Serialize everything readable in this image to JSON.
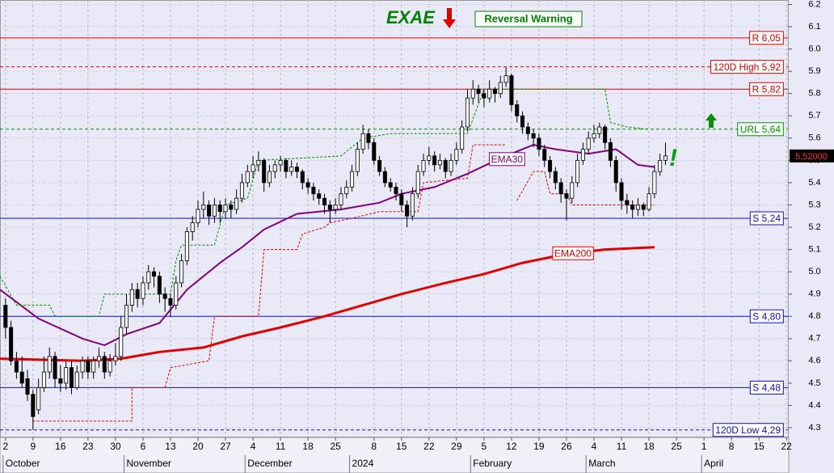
{
  "chart_data": {
    "type": "candlestick",
    "title": "EXAE",
    "signal": "Reversal Warning",
    "annotation": "!",
    "xlim": [
      -1,
      143
    ],
    "ylim": [
      4.26,
      6.22
    ],
    "yticks": [
      4.3,
      4.4,
      4.5,
      4.6,
      4.7,
      4.8,
      4.9,
      {
        "value": 5,
        "label": "5.0"
      },
      5.1,
      5.2,
      5.3,
      5.4,
      5.5,
      5.6,
      5.7,
      5.8,
      5.9,
      {
        "value": 6,
        "label": "6.0"
      },
      6.1,
      6.2
    ],
    "xticks": [
      {
        "value": 0,
        "label": "2"
      },
      {
        "value": 5,
        "label": "9"
      },
      {
        "value": 10,
        "label": "16"
      },
      {
        "value": 15,
        "label": "23"
      },
      {
        "value": 20,
        "label": "30"
      },
      {
        "value": 25,
        "label": "6"
      },
      {
        "value": 30,
        "label": "13"
      },
      {
        "value": 35,
        "label": "20"
      },
      {
        "value": 40,
        "label": "27"
      },
      {
        "value": 45,
        "label": "4"
      },
      {
        "value": 50,
        "label": "11"
      },
      {
        "value": 55,
        "label": "18"
      },
      {
        "value": 60,
        "label": "25"
      },
      {
        "value": 67,
        "label": "8"
      },
      {
        "value": 72,
        "label": "15"
      },
      {
        "value": 77,
        "label": "22"
      },
      {
        "value": 82,
        "label": "29"
      },
      {
        "value": 87,
        "label": "5"
      },
      {
        "value": 92,
        "label": "12"
      },
      {
        "value": 97,
        "label": "19"
      },
      {
        "value": 102,
        "label": "26"
      },
      {
        "value": 107,
        "label": "4"
      },
      {
        "value": 112,
        "label": "11"
      },
      {
        "value": 117,
        "label": "18"
      },
      {
        "value": 122,
        "label": "25"
      },
      {
        "value": 127,
        "label": "1"
      },
      {
        "value": 132,
        "label": "8"
      },
      {
        "value": 137,
        "label": "15"
      },
      {
        "value": 142,
        "label": "22"
      }
    ],
    "months": [
      {
        "value": 0,
        "label": "October"
      },
      {
        "value": 22,
        "label": "November"
      },
      {
        "value": 44,
        "label": "December"
      },
      {
        "value": 63,
        "label": "2024"
      },
      {
        "value": 85,
        "label": "February"
      },
      {
        "value": 106,
        "label": "March"
      },
      {
        "value": 127,
        "label": "April"
      }
    ],
    "candles": [
      [
        4.85,
        4.88,
        4.7,
        4.75
      ],
      [
        4.75,
        4.78,
        4.58,
        4.6
      ],
      [
        4.6,
        4.64,
        4.52,
        4.55
      ],
      [
        4.55,
        4.62,
        4.48,
        4.5
      ],
      [
        4.52,
        4.56,
        4.42,
        4.45
      ],
      [
        4.45,
        4.47,
        4.29,
        4.35
      ],
      [
        4.38,
        4.52,
        4.36,
        4.48
      ],
      [
        4.48,
        4.62,
        4.46,
        4.55
      ],
      [
        4.55,
        4.66,
        4.52,
        4.62
      ],
      [
        4.62,
        4.64,
        4.48,
        4.52
      ],
      [
        4.52,
        4.58,
        4.46,
        4.5
      ],
      [
        4.5,
        4.6,
        4.47,
        4.57
      ],
      [
        4.57,
        4.6,
        4.45,
        4.48
      ],
      [
        4.48,
        4.58,
        4.47,
        4.55
      ],
      [
        4.55,
        4.62,
        4.52,
        4.6
      ],
      [
        4.6,
        4.62,
        4.52,
        4.55
      ],
      [
        4.55,
        4.62,
        4.52,
        4.6
      ],
      [
        4.6,
        4.66,
        4.57,
        4.62
      ],
      [
        4.62,
        4.64,
        4.52,
        4.55
      ],
      [
        4.55,
        4.63,
        4.53,
        4.6
      ],
      [
        4.6,
        4.68,
        4.58,
        4.62
      ],
      [
        4.62,
        4.8,
        4.6,
        4.75
      ],
      [
        4.75,
        4.9,
        4.72,
        4.85
      ],
      [
        4.85,
        4.95,
        4.82,
        4.92
      ],
      [
        4.92,
        4.95,
        4.84,
        4.88
      ],
      [
        4.88,
        4.98,
        4.85,
        4.95
      ],
      [
        4.95,
        5.03,
        4.92,
        5.0
      ],
      [
        5.0,
        5.02,
        4.93,
        4.98
      ],
      [
        4.98,
        5.0,
        4.86,
        4.9
      ],
      [
        4.9,
        4.93,
        4.82,
        4.88
      ],
      [
        4.88,
        4.9,
        4.8,
        4.85
      ],
      [
        4.85,
        4.98,
        4.83,
        4.95
      ],
      [
        4.95,
        5.08,
        4.93,
        5.05
      ],
      [
        5.05,
        5.2,
        5.03,
        5.18
      ],
      [
        5.18,
        5.25,
        5.14,
        5.22
      ],
      [
        5.22,
        5.32,
        5.2,
        5.28
      ],
      [
        5.28,
        5.36,
        5.24,
        5.3
      ],
      [
        5.3,
        5.32,
        5.21,
        5.25
      ],
      [
        5.25,
        5.33,
        5.22,
        5.3
      ],
      [
        5.3,
        5.32,
        5.22,
        5.27
      ],
      [
        5.27,
        5.33,
        5.24,
        5.3
      ],
      [
        5.3,
        5.32,
        5.24,
        5.28
      ],
      [
        5.28,
        5.37,
        5.26,
        5.33
      ],
      [
        5.33,
        5.44,
        5.31,
        5.4
      ],
      [
        5.4,
        5.48,
        5.38,
        5.45
      ],
      [
        5.45,
        5.52,
        5.42,
        5.48
      ],
      [
        5.48,
        5.54,
        5.45,
        5.5
      ],
      [
        5.5,
        5.51,
        5.36,
        5.4
      ],
      [
        5.4,
        5.48,
        5.38,
        5.45
      ],
      [
        5.45,
        5.5,
        5.42,
        5.48
      ],
      [
        5.48,
        5.52,
        5.45,
        5.5
      ],
      [
        5.5,
        5.51,
        5.42,
        5.45
      ],
      [
        5.45,
        5.5,
        5.43,
        5.47
      ],
      [
        5.47,
        5.49,
        5.42,
        5.45
      ],
      [
        5.45,
        5.46,
        5.37,
        5.4
      ],
      [
        5.4,
        5.42,
        5.35,
        5.38
      ],
      [
        5.38,
        5.4,
        5.32,
        5.35
      ],
      [
        5.35,
        5.37,
        5.3,
        5.33
      ],
      [
        5.33,
        5.35,
        5.26,
        5.3
      ],
      [
        5.3,
        5.32,
        5.22,
        5.28
      ],
      [
        5.28,
        5.33,
        5.26,
        5.3
      ],
      [
        5.3,
        5.38,
        5.28,
        5.35
      ],
      [
        5.35,
        5.41,
        5.33,
        5.38
      ],
      [
        5.38,
        5.48,
        5.36,
        5.45
      ],
      [
        5.45,
        5.58,
        5.43,
        5.55
      ],
      [
        5.55,
        5.66,
        5.53,
        5.62
      ],
      [
        5.62,
        5.64,
        5.55,
        5.58
      ],
      [
        5.58,
        5.6,
        5.48,
        5.5
      ],
      [
        5.5,
        5.52,
        5.43,
        5.45
      ],
      [
        5.45,
        5.47,
        5.38,
        5.4
      ],
      [
        5.4,
        5.42,
        5.36,
        5.38
      ],
      [
        5.38,
        5.4,
        5.32,
        5.35
      ],
      [
        5.35,
        5.37,
        5.27,
        5.3
      ],
      [
        5.3,
        5.32,
        5.2,
        5.25
      ],
      [
        5.25,
        5.38,
        5.23,
        5.35
      ],
      [
        5.35,
        5.48,
        5.33,
        5.45
      ],
      [
        5.45,
        5.53,
        5.43,
        5.5
      ],
      [
        5.5,
        5.56,
        5.48,
        5.52
      ],
      [
        5.52,
        5.54,
        5.45,
        5.48
      ],
      [
        5.48,
        5.53,
        5.46,
        5.5
      ],
      [
        5.5,
        5.51,
        5.42,
        5.45
      ],
      [
        5.45,
        5.53,
        5.43,
        5.5
      ],
      [
        5.5,
        5.58,
        5.48,
        5.55
      ],
      [
        5.55,
        5.68,
        5.53,
        5.65
      ],
      [
        5.65,
        5.82,
        5.63,
        5.78
      ],
      [
        5.78,
        5.86,
        5.75,
        5.82
      ],
      [
        5.82,
        5.84,
        5.76,
        5.8
      ],
      [
        5.8,
        5.82,
        5.74,
        5.78
      ],
      [
        5.78,
        5.86,
        5.76,
        5.82
      ],
      [
        5.82,
        5.83,
        5.76,
        5.8
      ],
      [
        5.8,
        5.88,
        5.78,
        5.85
      ],
      [
        5.85,
        5.92,
        5.83,
        5.88
      ],
      [
        5.88,
        5.89,
        5.72,
        5.75
      ],
      [
        5.75,
        5.77,
        5.67,
        5.7
      ],
      [
        5.7,
        5.72,
        5.62,
        5.65
      ],
      [
        5.65,
        5.67,
        5.59,
        5.62
      ],
      [
        5.62,
        5.64,
        5.56,
        5.6
      ],
      [
        5.6,
        5.62,
        5.52,
        5.55
      ],
      [
        5.55,
        5.57,
        5.47,
        5.5
      ],
      [
        5.5,
        5.52,
        5.42,
        5.45
      ],
      [
        5.45,
        5.47,
        5.37,
        5.4
      ],
      [
        5.4,
        5.42,
        5.31,
        5.35
      ],
      [
        5.35,
        5.37,
        5.23,
        5.33
      ],
      [
        5.33,
        5.43,
        5.31,
        5.4
      ],
      [
        5.4,
        5.53,
        5.38,
        5.5
      ],
      [
        5.5,
        5.58,
        5.48,
        5.55
      ],
      [
        5.55,
        5.63,
        5.53,
        5.6
      ],
      [
        5.6,
        5.66,
        5.58,
        5.62
      ],
      [
        5.62,
        5.67,
        5.6,
        5.65
      ],
      [
        5.65,
        5.66,
        5.55,
        5.58
      ],
      [
        5.58,
        5.6,
        5.47,
        5.5
      ],
      [
        5.5,
        5.52,
        5.36,
        5.4
      ],
      [
        5.4,
        5.42,
        5.28,
        5.32
      ],
      [
        5.32,
        5.35,
        5.26,
        5.3
      ],
      [
        5.3,
        5.32,
        5.24,
        5.28
      ],
      [
        5.28,
        5.33,
        5.25,
        5.3
      ],
      [
        5.3,
        5.31,
        5.25,
        5.28
      ],
      [
        5.28,
        5.38,
        5.27,
        5.35
      ],
      [
        5.35,
        5.48,
        5.33,
        5.45
      ],
      [
        5.45,
        5.53,
        5.43,
        5.5
      ],
      [
        5.5,
        5.58,
        5.48,
        5.52
      ]
    ],
    "series": [
      {
        "name": "EMA30",
        "color": "#800080",
        "width": 2,
        "label_at": 88,
        "x": [
          -1,
          6,
          14,
          18,
          22,
          28,
          33,
          39,
          43,
          47,
          53,
          61,
          68,
          72,
          78,
          84,
          90,
          96,
          100,
          106,
          111,
          115,
          118
        ],
        "values": [
          4.92,
          4.79,
          4.7,
          4.67,
          4.72,
          4.77,
          4.92,
          5.04,
          5.11,
          5.19,
          5.26,
          5.28,
          5.31,
          5.35,
          5.38,
          5.44,
          5.51,
          5.57,
          5.55,
          5.53,
          5.55,
          5.48,
          5.47
        ]
      },
      {
        "name": "EMA200",
        "color": "#e00000",
        "width": 3,
        "label_at": 97,
        "x": [
          -1,
          14,
          21,
          28,
          36,
          43,
          50,
          58,
          65,
          72,
          80,
          87,
          94,
          102,
          109,
          118
        ],
        "values": [
          4.61,
          4.6,
          4.61,
          4.64,
          4.66,
          4.71,
          4.75,
          4.8,
          4.85,
          4.9,
          4.95,
          4.99,
          5.04,
          5.08,
          5.1,
          5.11
        ]
      },
      {
        "color": "#e00000",
        "width": 1,
        "dash": true,
        "x": [
          5,
          23,
          23,
          29,
          30,
          37,
          38,
          46,
          47,
          53,
          54,
          58,
          59,
          63,
          68,
          75,
          76,
          84,
          85,
          91,
          null,
          93,
          96,
          98,
          99,
          102,
          103,
          117,
          118
        ],
        "values": [
          4.33,
          4.33,
          4.48,
          4.48,
          4.57,
          4.6,
          4.8,
          4.8,
          5.1,
          5.1,
          5.17,
          5.2,
          5.22,
          5.24,
          5.27,
          5.27,
          5.4,
          5.42,
          5.57,
          5.57,
          null,
          5.32,
          5.45,
          5.45,
          5.35,
          5.35,
          5.3,
          5.3,
          5.3
        ]
      },
      {
        "color": "#009000",
        "width": 1,
        "dash": true,
        "x": [
          -1,
          2,
          8,
          9,
          17,
          18,
          30,
          31,
          32,
          38,
          40,
          44,
          46,
          61,
          65,
          70,
          84,
          87,
          109,
          110,
          113,
          117
        ],
        "values": [
          4.98,
          4.85,
          4.85,
          4.8,
          4.8,
          4.9,
          4.9,
          5.05,
          5.12,
          5.12,
          5.3,
          5.33,
          5.5,
          5.52,
          5.6,
          5.62,
          5.62,
          5.82,
          5.82,
          5.67,
          5.65,
          5.64
        ]
      }
    ],
    "levels": [
      {
        "value": 6.05,
        "label": "R 6,05",
        "color": "#e00000",
        "dash": false
      },
      {
        "value": 5.92,
        "label": "120D High 5,92",
        "color": "#e00000",
        "dash": true
      },
      {
        "value": 5.82,
        "label": "R 5,82",
        "color": "#e00000",
        "dash": false
      },
      {
        "value": 5.64,
        "label": "URL 5,64",
        "color": "#009000",
        "dash": true
      },
      {
        "value": 5.24,
        "label": "S 5,24",
        "color": "#1010c0",
        "dash": false
      },
      {
        "value": 4.8,
        "label": "S 4,80",
        "color": "#1010c0",
        "dash": false
      },
      {
        "value": 4.48,
        "label": "S 4,48",
        "color": "#1010c0",
        "dash": false
      },
      {
        "value": 4.29,
        "label": "120D Low 4,29",
        "color": "#1010c0",
        "dash": true
      }
    ],
    "last_price": {
      "value": 5.52,
      "label": "5,52000"
    }
  }
}
